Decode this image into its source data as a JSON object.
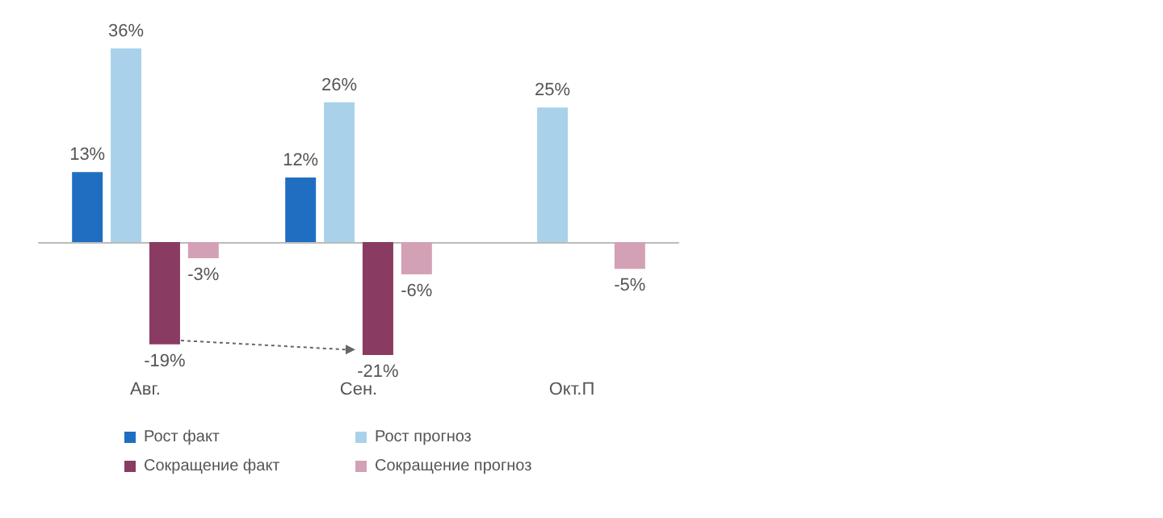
{
  "chart_data": {
    "type": "bar",
    "categories": [
      "Авг.",
      "Сен.",
      "Окт.П"
    ],
    "series": [
      {
        "name": "Рост факт",
        "color": "#1f6ec2",
        "values": [
          13,
          12,
          null
        ],
        "value_labels": [
          "13%",
          "12%",
          null
        ]
      },
      {
        "name": "Рост прогноз",
        "color": "#a9d2ea",
        "values": [
          36,
          26,
          25
        ],
        "value_labels": [
          "36%",
          "26%",
          "25%"
        ]
      },
      {
        "name": "Сокращение факт",
        "color": "#8a3b62",
        "values": [
          -19,
          -21,
          null
        ],
        "value_labels": [
          "-19%",
          "-21%",
          null
        ]
      },
      {
        "name": "Сокращение прогноз",
        "color": "#d3a1b5",
        "values": [
          -3,
          -6,
          -5
        ],
        "value_labels": [
          "-3%",
          "-6%",
          "-5%"
        ]
      }
    ],
    "legend": "bottom"
  }
}
